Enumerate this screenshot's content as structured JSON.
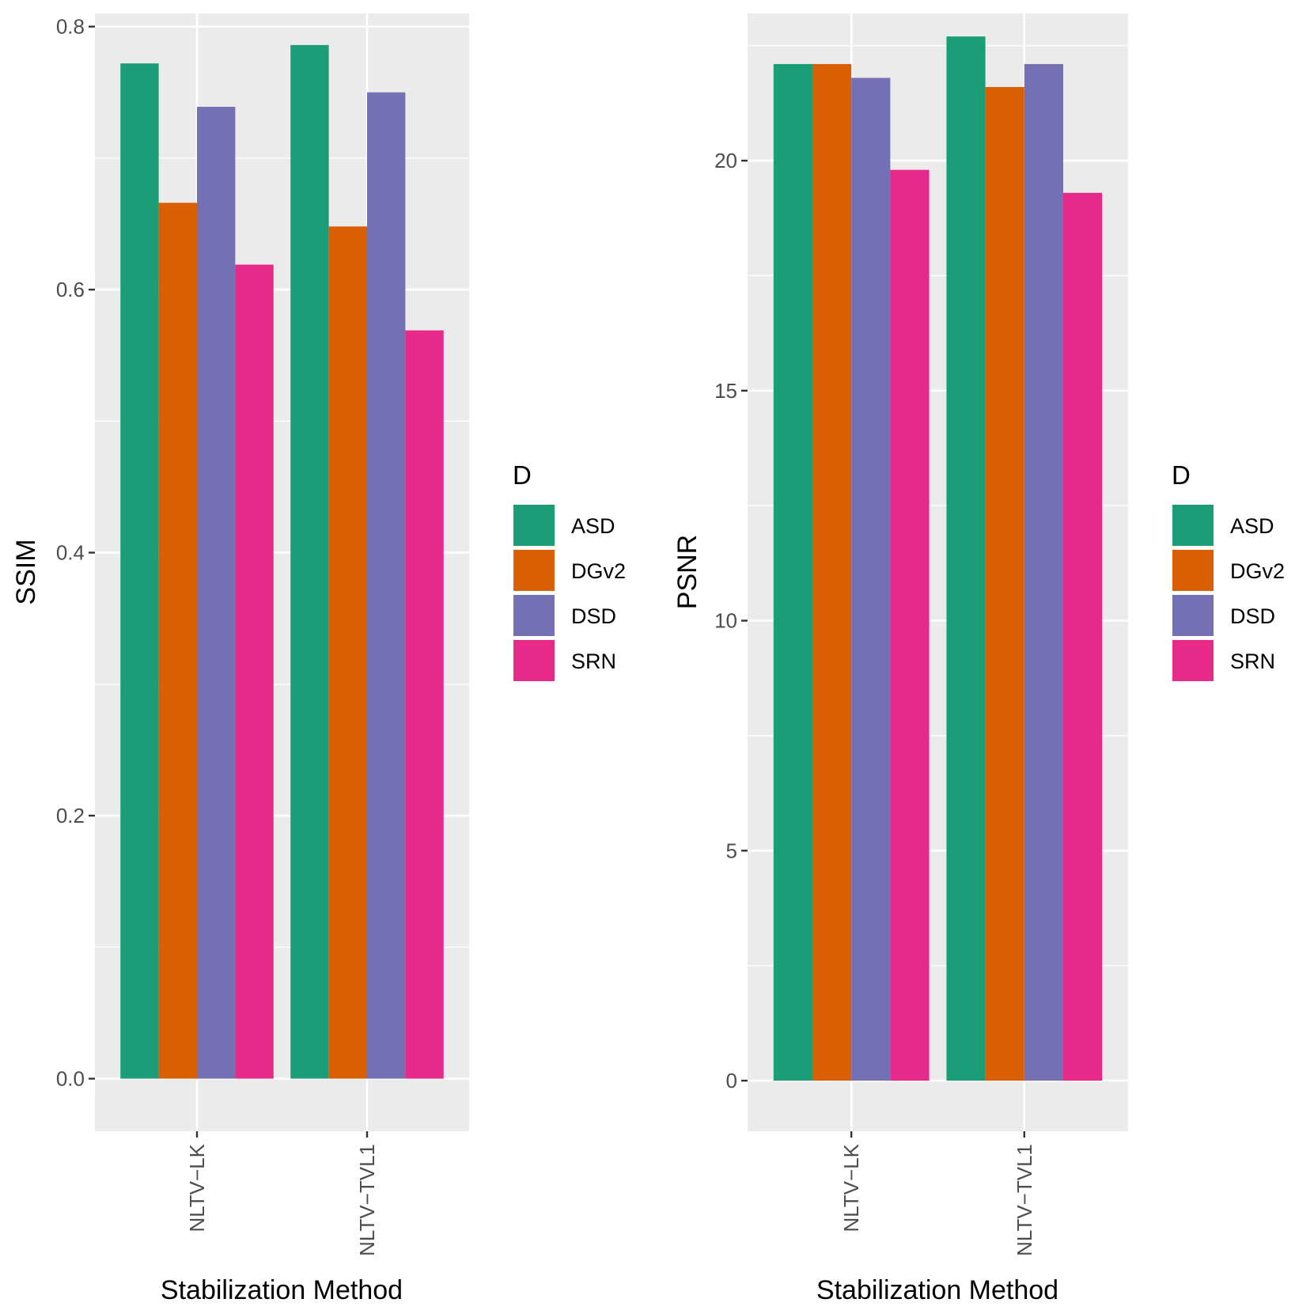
{
  "chart_data": [
    {
      "type": "bar",
      "xlabel": "Stabilization Method",
      "ylabel": "SSIM",
      "categories": [
        "NLTV−LK",
        "NLTV−TVL1"
      ],
      "ylim": [
        -0.04,
        0.81
      ],
      "yticks": [
        0.0,
        0.2,
        0.4,
        0.6,
        0.8
      ],
      "ytick_labels": [
        "0.0",
        "0.2",
        "0.4",
        "0.6",
        "0.8"
      ],
      "grid": true,
      "series": [
        {
          "name": "ASD",
          "values": [
            0.772,
            0.786
          ]
        },
        {
          "name": "DGv2",
          "values": [
            0.666,
            0.648
          ]
        },
        {
          "name": "DSD",
          "values": [
            0.739,
            0.75
          ]
        },
        {
          "name": "SRN",
          "values": [
            0.619,
            0.569
          ]
        }
      ],
      "legend": {
        "title": "D",
        "position": "right"
      }
    },
    {
      "type": "bar",
      "xlabel": "Stabilization Method",
      "ylabel": "PSNR",
      "categories": [
        "NLTV−LK",
        "NLTV−TVL1"
      ],
      "ylim": [
        -1.1,
        23.2
      ],
      "yticks": [
        0,
        5,
        10,
        15,
        20
      ],
      "ytick_labels": [
        "0",
        "5",
        "10",
        "15",
        "20"
      ],
      "grid": true,
      "series": [
        {
          "name": "ASD",
          "values": [
            22.1,
            22.7
          ]
        },
        {
          "name": "DGv2",
          "values": [
            22.1,
            21.6
          ]
        },
        {
          "name": "DSD",
          "values": [
            21.8,
            22.1
          ]
        },
        {
          "name": "SRN",
          "values": [
            19.8,
            19.3
          ]
        }
      ],
      "legend": {
        "title": "D",
        "position": "right"
      }
    }
  ],
  "colors": {
    "ASD": "#1b9e77",
    "DGv2": "#d95f02",
    "DSD": "#7570b3",
    "SRN": "#e7298a",
    "panel_background": "#ebebeb",
    "grid": "#ffffff"
  }
}
